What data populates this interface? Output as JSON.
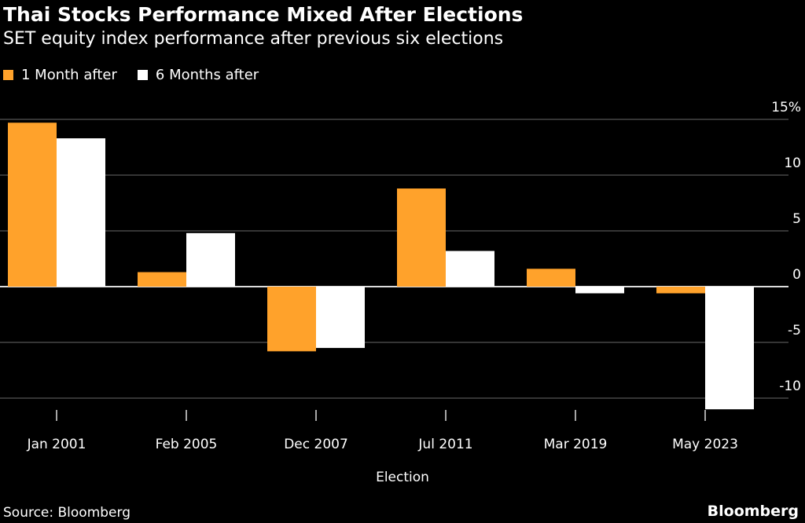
{
  "title": "Thai Stocks Performance Mixed After Elections",
  "subtitle": "SET equity index performance after previous six elections",
  "source": "Source: Bloomberg",
  "logo": "Bloomberg",
  "colors": {
    "one_month": "#FFA22B",
    "six_months": "#FFFFFF",
    "background": "#000000",
    "grid": "#555555"
  },
  "chart_data": {
    "type": "bar",
    "categories": [
      "Jan 2001",
      "Feb 2005",
      "Dec 2007",
      "Jul 2011",
      "Mar 2019",
      "May 2023"
    ],
    "series": [
      {
        "name": "1 Month after",
        "values": [
          14.7,
          1.3,
          -5.8,
          8.8,
          1.6,
          -0.6
        ]
      },
      {
        "name": "6 Months after",
        "values": [
          13.3,
          4.8,
          -5.5,
          3.2,
          -0.6,
          -11.0
        ]
      }
    ],
    "xlabel": "Election",
    "ylabel": "",
    "ylim": [
      -12,
      15
    ],
    "yticks": [
      15,
      10,
      5,
      0,
      -5,
      -10
    ],
    "ytick_labels": [
      "15%",
      "10",
      "5",
      "0",
      "-5",
      "-10"
    ],
    "grid": true,
    "legend": "top-left",
    "y_axis_side": "right"
  }
}
